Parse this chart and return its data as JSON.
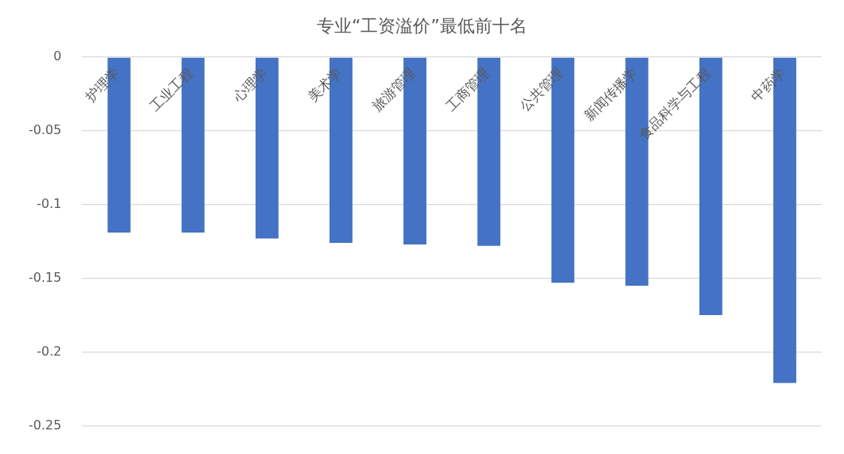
{
  "chart_data": {
    "type": "bar",
    "title": "专业“工资溢价”最低前十名",
    "categories": [
      "护理学",
      "工业工程",
      "心理学",
      "美术学",
      "旅游管理",
      "工商管理",
      "公共管理",
      "新闻传播学",
      "食品科学与工程",
      "中药学"
    ],
    "values": [
      -0.119,
      -0.119,
      -0.123,
      -0.126,
      -0.127,
      -0.128,
      -0.153,
      -0.155,
      -0.175,
      -0.221
    ],
    "color": "#4472c4",
    "ylim": [
      -0.25,
      0
    ],
    "yticks": [
      0,
      -0.05,
      -0.1,
      -0.15,
      -0.2,
      -0.25
    ],
    "grid": "y"
  }
}
